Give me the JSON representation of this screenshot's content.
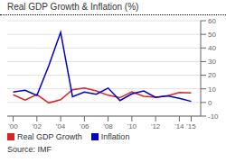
{
  "chart_data": {
    "type": "line",
    "title": "Real GDP Growth & Inflation (%)",
    "annotations": [
      "Source: IMF"
    ],
    "x": [
      2000,
      2001,
      2002,
      2003,
      2004,
      2005,
      2006,
      2007,
      2008,
      2009,
      2010,
      2011,
      2012,
      2013,
      2014,
      2015
    ],
    "series": [
      {
        "name": "Real GDP Growth",
        "color": "#dd2222",
        "values": [
          5.7,
          1.8,
          5.8,
          -0.3,
          2.0,
          9.3,
          10.7,
          8.5,
          5.3,
          3.5,
          7.8,
          4.5,
          3.9,
          4.8,
          7.3,
          7.0
        ]
      },
      {
        "name": "Inflation",
        "color": "#0000cc",
        "values": [
          7.7,
          8.9,
          5.2,
          27.0,
          51.5,
          4.2,
          7.6,
          6.1,
          10.6,
          1.4,
          6.3,
          8.5,
          3.7,
          4.8,
          3.0,
          0.8
        ]
      }
    ],
    "xlim": [
      1999.5,
      2015.8
    ],
    "xticks": [
      {
        "value": 2000,
        "label": "'00"
      },
      {
        "value": 2002,
        "label": "'02"
      },
      {
        "value": 2004,
        "label": "'04"
      },
      {
        "value": 2006,
        "label": "'06"
      },
      {
        "value": 2008,
        "label": "'08"
      },
      {
        "value": 2010,
        "label": "'10"
      },
      {
        "value": 2012,
        "label": "'12"
      },
      {
        "value": 2014,
        "label": "'14"
      },
      {
        "value": 2015,
        "label": "'15"
      }
    ],
    "ylim": [
      -10,
      60
    ],
    "yticks": [
      -10,
      0,
      10,
      20,
      30,
      40,
      50,
      60
    ],
    "grid": true,
    "legend": "bottom"
  }
}
